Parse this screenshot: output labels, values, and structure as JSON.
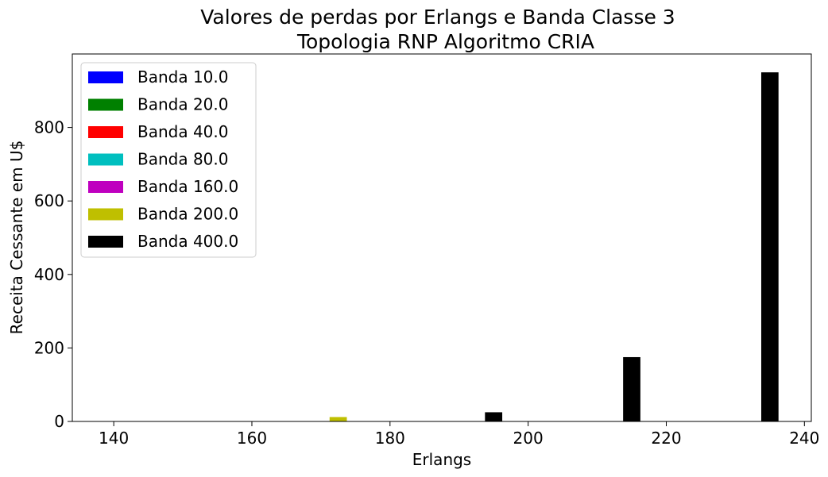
{
  "chart_data": {
    "type": "bar",
    "title_line1": "Valores de perdas por Erlangs e Banda Classe 3",
    "title_line2": "Topologia RNP Algoritmo CRIA",
    "xlabel": "Erlangs",
    "ylabel": "Receita Cessante em U$",
    "xlim": [
      134,
      241
    ],
    "ylim": [
      0,
      1000
    ],
    "xticks": [
      140,
      160,
      180,
      200,
      220,
      240
    ],
    "yticks": [
      0,
      200,
      400,
      600,
      800
    ],
    "categories": [
      140,
      160,
      180,
      200,
      220,
      240
    ],
    "bar_width": 2.5,
    "legend_position": "top-left",
    "series": [
      {
        "name": "Banda 10.0",
        "color": "#0000ff",
        "offset": -7.5,
        "values": [
          0,
          0,
          0,
          0,
          0,
          0
        ]
      },
      {
        "name": "Banda 20.0",
        "color": "#008000",
        "offset": -5.0,
        "values": [
          0,
          0,
          0,
          0,
          0,
          0
        ]
      },
      {
        "name": "Banda 40.0",
        "color": "#ff0000",
        "offset": -2.5,
        "values": [
          0,
          0,
          0,
          0,
          0,
          0
        ]
      },
      {
        "name": "Banda 80.0",
        "color": "#00bfbf",
        "offset": 0.0,
        "values": [
          0,
          0,
          0,
          0,
          0,
          0
        ]
      },
      {
        "name": "Banda 160.0",
        "color": "#bf00bf",
        "offset": 2.5,
        "values": [
          0,
          0,
          0,
          0,
          0,
          0
        ]
      },
      {
        "name": "Banda 200.0",
        "color": "#bfbf00",
        "offset": -7.5,
        "values": [
          0,
          0,
          12,
          0,
          0,
          0
        ]
      },
      {
        "name": "Banda 400.0",
        "color": "#000000",
        "offset": -5.0,
        "values": [
          0,
          0,
          0,
          25,
          175,
          950
        ]
      }
    ]
  }
}
